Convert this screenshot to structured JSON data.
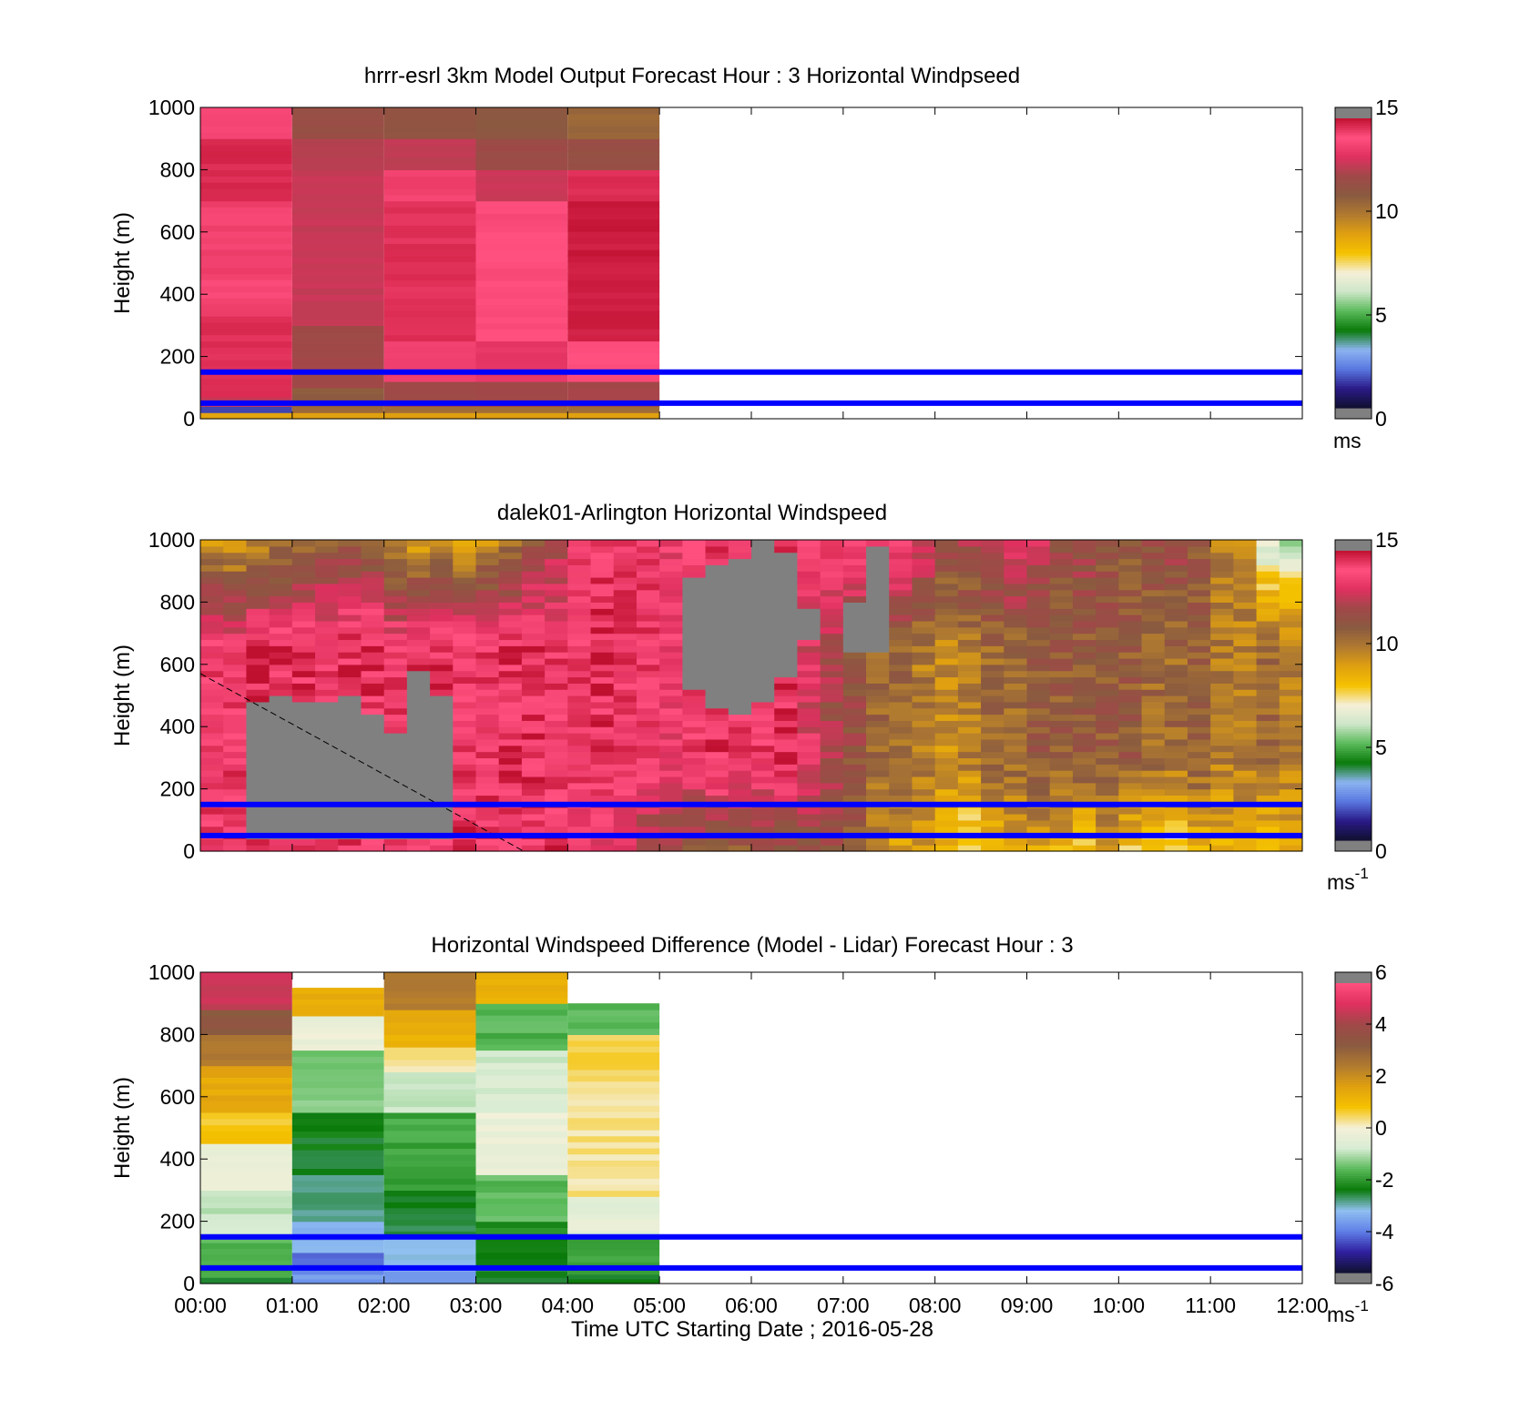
{
  "colors": {
    "wind_colormap": [
      "#101030",
      "#2a1a88",
      "#5a78e0",
      "#8cb4f0",
      "#0a7a0a",
      "#5aba5a",
      "#cde6c8",
      "#f5f0d8",
      "#f5c200",
      "#e0a010",
      "#b07a30",
      "#8a5a40",
      "#a04848",
      "#e03060",
      "#ff5080",
      "#c01030"
    ],
    "diff_colormap": [
      "#101030",
      "#3020a0",
      "#6080e8",
      "#90c0f0",
      "#0a7a0a",
      "#5aba5a",
      "#d8ecd4",
      "#f5f0d8",
      "#f5c200",
      "#e0a010",
      "#b07a30",
      "#8a5a40",
      "#a04848",
      "#e03060",
      "#ff5080"
    ],
    "missing": "#808080",
    "lines": "#0000ff"
  },
  "chart_data": [
    {
      "type": "heatmap",
      "title": "hrrr-esrl 3km Model Output   Forecast Hour : 3 Horizontal Windpseed",
      "ylabel": "Height (m)",
      "xlim": [
        "00:00",
        "12:00"
      ],
      "ylim": [
        0,
        1000
      ],
      "x_tick_labels": [],
      "y_tick_labels": [
        "0",
        "200",
        "400",
        "600",
        "800",
        "1000"
      ],
      "colorbar": {
        "range": [
          0,
          15
        ],
        "tick_labels": [
          "0",
          "5",
          "10",
          "15"
        ],
        "unit": "ms",
        "unit_superscript": ""
      },
      "reference_lines_m": [
        50,
        150
      ],
      "columns": [
        {
          "start": "00:00",
          "end": "01:00",
          "bands": [
            {
              "from": 0,
              "to": 20,
              "value": 9
            },
            {
              "from": 20,
              "to": 40,
              "value": 1.5
            },
            {
              "from": 40,
              "to": 70,
              "value": 12.5
            },
            {
              "from": 70,
              "to": 330,
              "value": 14.5
            },
            {
              "from": 330,
              "to": 700,
              "value": 14.2
            },
            {
              "from": 700,
              "to": 900,
              "value": 14.6
            },
            {
              "from": 900,
              "to": 1000,
              "value": 13.6
            }
          ]
        },
        {
          "start": "01:00",
          "end": "02:00",
          "bands": [
            {
              "from": 0,
              "to": 20,
              "value": 9
            },
            {
              "from": 20,
              "to": 40,
              "value": 10.5
            },
            {
              "from": 40,
              "to": 100,
              "value": 11
            },
            {
              "from": 100,
              "to": 300,
              "value": 12
            },
            {
              "from": 300,
              "to": 800,
              "value": 12.6
            },
            {
              "from": 800,
              "to": 900,
              "value": 12.3
            },
            {
              "from": 900,
              "to": 1000,
              "value": 11.6
            }
          ]
        },
        {
          "start": "02:00",
          "end": "03:00",
          "bands": [
            {
              "from": 0,
              "to": 20,
              "value": 9
            },
            {
              "from": 20,
              "to": 40,
              "value": 10.5
            },
            {
              "from": 40,
              "to": 120,
              "value": 12
            },
            {
              "from": 120,
              "to": 250,
              "value": 13.5
            },
            {
              "from": 250,
              "to": 700,
              "value": 14.5
            },
            {
              "from": 700,
              "to": 800,
              "value": 14.2
            },
            {
              "from": 800,
              "to": 900,
              "value": 12.5
            },
            {
              "from": 900,
              "to": 1000,
              "value": 11.3
            }
          ]
        },
        {
          "start": "03:00",
          "end": "04:00",
          "bands": [
            {
              "from": 0,
              "to": 20,
              "value": 9
            },
            {
              "from": 20,
              "to": 40,
              "value": 10.5
            },
            {
              "from": 40,
              "to": 120,
              "value": 12
            },
            {
              "from": 120,
              "to": 250,
              "value": 13.2
            },
            {
              "from": 250,
              "to": 600,
              "value": 14
            },
            {
              "from": 600,
              "to": 700,
              "value": 13.8
            },
            {
              "from": 700,
              "to": 800,
              "value": 12.6
            },
            {
              "from": 800,
              "to": 900,
              "value": 11.8
            },
            {
              "from": 900,
              "to": 1000,
              "value": 11.1
            }
          ]
        },
        {
          "start": "04:00",
          "end": "05:00",
          "bands": [
            {
              "from": 0,
              "to": 20,
              "value": 9
            },
            {
              "from": 20,
              "to": 40,
              "value": 10.5
            },
            {
              "from": 40,
              "to": 120,
              "value": 12
            },
            {
              "from": 120,
              "to": 250,
              "value": 14
            },
            {
              "from": 250,
              "to": 700,
              "value": 14.8
            },
            {
              "from": 700,
              "to": 800,
              "value": 14.5
            },
            {
              "from": 800,
              "to": 900,
              "value": 11.6
            },
            {
              "from": 900,
              "to": 1000,
              "value": 10.6
            }
          ]
        }
      ]
    },
    {
      "type": "heatmap",
      "title": "dalek01-Arlington  Horizontal Windspeed",
      "ylabel": "Height (m)",
      "xlim": [
        "00:00",
        "12:00"
      ],
      "ylim": [
        0,
        1000
      ],
      "x_tick_labels": [],
      "y_tick_labels": [
        "0",
        "200",
        "400",
        "600",
        "800",
        "1000"
      ],
      "colorbar": {
        "range": [
          0,
          15
        ],
        "tick_labels": [
          "0",
          "5",
          "10",
          "15"
        ],
        "unit": "ms",
        "unit_superscript": "-1"
      },
      "reference_lines_m": [
        50,
        150
      ],
      "profiles_interval_min": 15,
      "profiles": [
        {
          "bottom": 14,
          "mid": 14,
          "top": 9.5,
          "missing": []
        },
        {
          "bottom": 14.5,
          "mid": 14,
          "top": 9,
          "missing": []
        },
        {
          "bottom": 14,
          "mid": 14.5,
          "top": 9.5,
          "missing": [
            [
              50,
              480
            ]
          ]
        },
        {
          "bottom": 14,
          "mid": 14.5,
          "top": 10,
          "missing": [
            [
              50,
              500
            ]
          ]
        },
        {
          "bottom": 14,
          "mid": 14.5,
          "top": 10.5,
          "missing": [
            [
              50,
              480
            ]
          ]
        },
        {
          "bottom": 14.5,
          "mid": 14,
          "top": 11,
          "missing": [
            [
              50,
              480
            ]
          ]
        },
        {
          "bottom": 14,
          "mid": 14.5,
          "top": 11,
          "missing": [
            [
              50,
              500
            ]
          ]
        },
        {
          "bottom": 14,
          "mid": 14.5,
          "top": 10.5,
          "missing": [
            [
              50,
              450
            ]
          ]
        },
        {
          "bottom": 14,
          "mid": 14,
          "top": 9.5,
          "missing": [
            [
              50,
              380
            ]
          ]
        },
        {
          "bottom": 14.5,
          "mid": 14.5,
          "top": 9,
          "missing": [
            [
              50,
              580
            ]
          ]
        },
        {
          "bottom": 14,
          "mid": 14.5,
          "top": 9.5,
          "missing": [
            [
              50,
              500
            ]
          ]
        },
        {
          "bottom": 14.5,
          "mid": 14,
          "top": 9,
          "missing": []
        },
        {
          "bottom": 14.5,
          "mid": 14,
          "top": 9.5,
          "missing": []
        },
        {
          "bottom": 14,
          "mid": 14.5,
          "top": 10,
          "missing": []
        },
        {
          "bottom": 14,
          "mid": 14.5,
          "top": 11,
          "missing": []
        },
        {
          "bottom": 14.5,
          "mid": 14,
          "top": 12,
          "missing": []
        },
        {
          "bottom": 13.5,
          "mid": 14,
          "top": 14,
          "missing": []
        },
        {
          "bottom": 13,
          "mid": 14.5,
          "top": 14.5,
          "missing": []
        },
        {
          "bottom": 12.5,
          "mid": 14,
          "top": 14,
          "missing": []
        },
        {
          "bottom": 11.5,
          "mid": 14,
          "top": 14,
          "missing": []
        },
        {
          "bottom": 11.5,
          "mid": 13.5,
          "top": 13.5,
          "missing": []
        },
        {
          "bottom": 11,
          "mid": 14,
          "top": 14,
          "missing": [
            [
              530,
              880
            ]
          ]
        },
        {
          "bottom": 11,
          "mid": 14.5,
          "top": 14,
          "missing": [
            [
              470,
              930
            ]
          ]
        },
        {
          "bottom": 11,
          "mid": 14,
          "top": 14,
          "missing": [
            [
              440,
              940
            ]
          ]
        },
        {
          "bottom": 11,
          "mid": 14,
          "top": 14,
          "missing": [
            [
              480,
              1000
            ]
          ]
        },
        {
          "bottom": 11,
          "mid": 14.5,
          "top": 14,
          "missing": [
            [
              560,
              960
            ]
          ]
        },
        {
          "bottom": 11.5,
          "mid": 13,
          "top": 14,
          "missing": [
            [
              680,
              780
            ]
          ]
        },
        {
          "bottom": 11.5,
          "mid": 12,
          "top": 14,
          "missing": []
        },
        {
          "bottom": 11,
          "mid": 11.5,
          "top": 14,
          "missing": [
            [
              640,
              800
            ]
          ]
        },
        {
          "bottom": 10,
          "mid": 10.5,
          "top": 13.5,
          "missing": [
            [
              650,
              980
            ]
          ]
        },
        {
          "bottom": 9,
          "mid": 10.5,
          "top": 14,
          "missing": []
        },
        {
          "bottom": 9,
          "mid": 10,
          "top": 13,
          "missing": []
        },
        {
          "bottom": 8.5,
          "mid": 9.5,
          "top": 12,
          "missing": []
        },
        {
          "bottom": 7,
          "mid": 10,
          "top": 12,
          "missing": []
        },
        {
          "bottom": 8.5,
          "mid": 10.5,
          "top": 12.5,
          "missing": []
        },
        {
          "bottom": 9,
          "mid": 10.5,
          "top": 13.5,
          "missing": []
        },
        {
          "bottom": 9,
          "mid": 11,
          "top": 12.5,
          "missing": []
        },
        {
          "bottom": 8.5,
          "mid": 11,
          "top": 11.5,
          "missing": []
        },
        {
          "bottom": 8,
          "mid": 11,
          "top": 12,
          "missing": []
        },
        {
          "bottom": 9,
          "mid": 11,
          "top": 11.5,
          "missing": []
        },
        {
          "bottom": 8,
          "mid": 11,
          "top": 11,
          "missing": []
        },
        {
          "bottom": 7.5,
          "mid": 10.5,
          "top": 11.5,
          "missing": []
        },
        {
          "bottom": 7,
          "mid": 10.5,
          "top": 12,
          "missing": []
        },
        {
          "bottom": 8,
          "mid": 11,
          "top": 11,
          "missing": []
        },
        {
          "bottom": 8.5,
          "mid": 10,
          "top": 10,
          "missing": []
        },
        {
          "bottom": 8.5,
          "mid": 10,
          "top": 9.5,
          "missing": []
        },
        {
          "bottom": 8,
          "mid": 10.5,
          "top": 6,
          "missing": []
        },
        {
          "bottom": 8.5,
          "mid": 10,
          "top": 5.5,
          "missing": []
        }
      ]
    },
    {
      "type": "heatmap",
      "title": "Horizontal Windspeed Difference (Model - Lidar) Forecast Hour : 3",
      "ylabel": "Height (m)",
      "xlabel": "Time UTC  Starting Date ; 2016-05-28",
      "xlim": [
        "00:00",
        "12:00"
      ],
      "ylim": [
        0,
        1000
      ],
      "x_tick_labels": [
        "00:00",
        "01:00",
        "02:00",
        "03:00",
        "04:00",
        "05:00",
        "06:00",
        "07:00",
        "08:00",
        "09:00",
        "10:00",
        "11:00",
        "12:00"
      ],
      "y_tick_labels": [
        "0",
        "200",
        "400",
        "600",
        "800",
        "1000"
      ],
      "colorbar": {
        "range": [
          -6,
          6
        ],
        "tick_labels": [
          "-6",
          "-4",
          "-2",
          "0",
          "2",
          "4",
          "6"
        ],
        "unit": "ms",
        "unit_superscript": "-1"
      },
      "reference_lines_m": [
        50,
        150
      ],
      "columns": [
        {
          "start": "00:00",
          "end": "01:00",
          "bands": [
            {
              "from": 0,
              "to": 20,
              "value": -2.5
            },
            {
              "from": 20,
              "to": 150,
              "value": -1.8
            },
            {
              "from": 150,
              "to": 300,
              "value": -1
            },
            {
              "from": 300,
              "to": 450,
              "value": -0.3
            },
            {
              "from": 450,
              "to": 550,
              "value": 0.8
            },
            {
              "from": 550,
              "to": 700,
              "value": 1.5
            },
            {
              "from": 700,
              "to": 800,
              "value": 2.5
            },
            {
              "from": 800,
              "to": 880,
              "value": 3.5
            },
            {
              "from": 880,
              "to": 1000,
              "value": 4.8
            }
          ]
        },
        {
          "start": "01:00",
          "end": "02:00",
          "bands": [
            {
              "from": 0,
              "to": 30,
              "value": -4
            },
            {
              "from": 30,
              "to": 100,
              "value": -4.3
            },
            {
              "from": 100,
              "to": 200,
              "value": -3.7
            },
            {
              "from": 200,
              "to": 350,
              "value": -3
            },
            {
              "from": 350,
              "to": 550,
              "value": -2.6
            },
            {
              "from": 550,
              "to": 750,
              "value": -1.5
            },
            {
              "from": 750,
              "to": 860,
              "value": -0.3
            },
            {
              "from": 860,
              "to": 950,
              "value": 1.3
            }
          ]
        },
        {
          "start": "02:00",
          "end": "03:00",
          "bands": [
            {
              "from": 0,
              "to": 40,
              "value": -4
            },
            {
              "from": 40,
              "to": 150,
              "value": -3.5
            },
            {
              "from": 150,
              "to": 300,
              "value": -2.7
            },
            {
              "from": 300,
              "to": 550,
              "value": -2
            },
            {
              "from": 550,
              "to": 680,
              "value": -1
            },
            {
              "from": 680,
              "to": 760,
              "value": 0.2
            },
            {
              "from": 760,
              "to": 880,
              "value": 1.4
            },
            {
              "from": 880,
              "to": 1000,
              "value": 2.5
            }
          ]
        },
        {
          "start": "03:00",
          "end": "04:00",
          "bands": [
            {
              "from": 0,
              "to": 60,
              "value": -2.8
            },
            {
              "from": 60,
              "to": 200,
              "value": -2.4
            },
            {
              "from": 200,
              "to": 350,
              "value": -1.7
            },
            {
              "from": 350,
              "to": 550,
              "value": -0.3
            },
            {
              "from": 550,
              "to": 750,
              "value": -0.8
            },
            {
              "from": 750,
              "to": 900,
              "value": -1.8
            },
            {
              "from": 900,
              "to": 1000,
              "value": 1.2
            }
          ]
        },
        {
          "start": "04:00",
          "end": "05:00",
          "bands": [
            {
              "from": 0,
              "to": 30,
              "value": -2.5
            },
            {
              "from": 30,
              "to": 150,
              "value": -2
            },
            {
              "from": 150,
              "to": 280,
              "value": -0.5
            },
            {
              "from": 280,
              "to": 650,
              "value": 0.3
            },
            {
              "from": 650,
              "to": 800,
              "value": 0.6
            },
            {
              "from": 800,
              "to": 900,
              "value": -1.8
            }
          ]
        }
      ]
    }
  ]
}
